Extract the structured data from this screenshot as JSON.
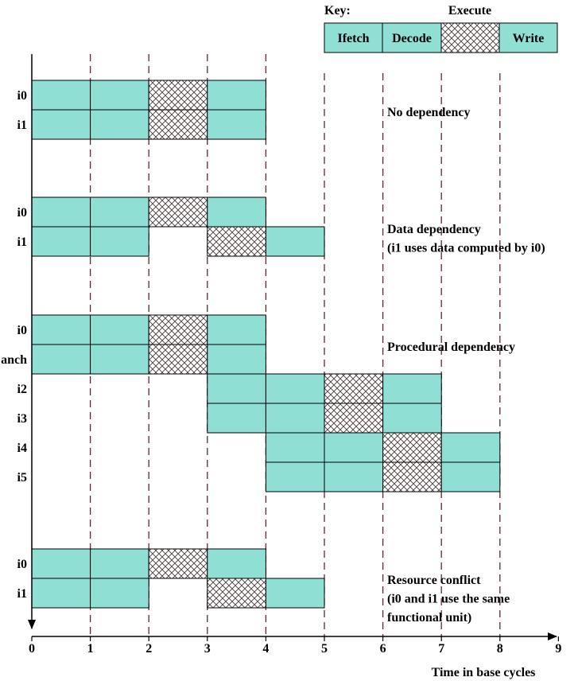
{
  "key": {
    "title": "Key:",
    "stages": [
      {
        "name": "Ifetch",
        "label": "Ifetch",
        "fill": "solid"
      },
      {
        "name": "Decode",
        "label": "Decode",
        "fill": "solid"
      },
      {
        "name": "Execute",
        "label": "Execute",
        "fill": "hatched"
      },
      {
        "name": "Write",
        "label": "Write",
        "fill": "solid"
      }
    ]
  },
  "axis": {
    "ticks": [
      "0",
      "1",
      "2",
      "3",
      "4",
      "5",
      "6",
      "7",
      "8",
      "9"
    ],
    "label": "Time in base cycles"
  },
  "groups": [
    {
      "id": "no-dependency",
      "caption": [
        "No dependency"
      ],
      "instructions": [
        {
          "name": "i0",
          "stages": [
            [
              "Ifetch",
              0,
              1
            ],
            [
              "Decode",
              1,
              2
            ],
            [
              "Execute",
              2,
              3
            ],
            [
              "Write",
              3,
              4
            ]
          ]
        },
        {
          "name": "i1",
          "stages": [
            [
              "Ifetch",
              0,
              1
            ],
            [
              "Decode",
              1,
              2
            ],
            [
              "Execute",
              2,
              3
            ],
            [
              "Write",
              3,
              4
            ]
          ]
        }
      ]
    },
    {
      "id": "data-dependency",
      "caption": [
        "Data dependency",
        "(i1 uses data computed by i0)"
      ],
      "instructions": [
        {
          "name": "i0",
          "stages": [
            [
              "Ifetch",
              0,
              1
            ],
            [
              "Decode",
              1,
              2
            ],
            [
              "Execute",
              2,
              3
            ],
            [
              "Write",
              3,
              4
            ]
          ]
        },
        {
          "name": "i1",
          "stages": [
            [
              "Ifetch",
              0,
              1
            ],
            [
              "Decode",
              1,
              2
            ],
            [
              "Execute",
              3,
              4
            ],
            [
              "Write",
              4,
              5
            ]
          ]
        }
      ]
    },
    {
      "id": "procedural-dependency",
      "caption": [
        "Procedural dependency"
      ],
      "instructions": [
        {
          "name": "i0",
          "stages": [
            [
              "Ifetch",
              0,
              1
            ],
            [
              "Decode",
              1,
              2
            ],
            [
              "Execute",
              2,
              3
            ],
            [
              "Write",
              3,
              4
            ]
          ]
        },
        {
          "name": "anch",
          "stages": [
            [
              "Ifetch",
              0,
              1
            ],
            [
              "Decode",
              1,
              2
            ],
            [
              "Execute",
              2,
              3
            ],
            [
              "Write",
              3,
              4
            ]
          ]
        },
        {
          "name": "i2",
          "stages": [
            [
              "Ifetch",
              3,
              4
            ],
            [
              "Decode",
              4,
              5
            ],
            [
              "Execute",
              5,
              6
            ],
            [
              "Write",
              6,
              7
            ]
          ]
        },
        {
          "name": "i3",
          "stages": [
            [
              "Ifetch",
              3,
              4
            ],
            [
              "Decode",
              4,
              5
            ],
            [
              "Execute",
              5,
              6
            ],
            [
              "Write",
              6,
              7
            ]
          ]
        },
        {
          "name": "i4",
          "stages": [
            [
              "Ifetch",
              4,
              5
            ],
            [
              "Decode",
              5,
              6
            ],
            [
              "Execute",
              6,
              7
            ],
            [
              "Write",
              7,
              8
            ]
          ]
        },
        {
          "name": "i5",
          "stages": [
            [
              "Ifetch",
              4,
              5
            ],
            [
              "Decode",
              5,
              6
            ],
            [
              "Execute",
              6,
              7
            ],
            [
              "Write",
              7,
              8
            ]
          ]
        }
      ]
    },
    {
      "id": "resource-conflict",
      "caption": [
        "Resource conflict",
        "(i0 and i1 use the same",
        "functional unit)"
      ],
      "instructions": [
        {
          "name": "i0",
          "stages": [
            [
              "Ifetch",
              0,
              1
            ],
            [
              "Decode",
              1,
              2
            ],
            [
              "Execute",
              2,
              3
            ],
            [
              "Write",
              3,
              4
            ]
          ]
        },
        {
          "name": "i1",
          "stages": [
            [
              "Ifetch",
              0,
              1
            ],
            [
              "Decode",
              1,
              2
            ],
            [
              "Execute",
              3,
              4
            ],
            [
              "Write",
              4,
              5
            ]
          ]
        }
      ]
    }
  ],
  "colors": {
    "stage_fill": "#8fdfd4",
    "hatch_bg": "#ffffff",
    "line": "#000000",
    "dash": "#5a2a2a"
  }
}
